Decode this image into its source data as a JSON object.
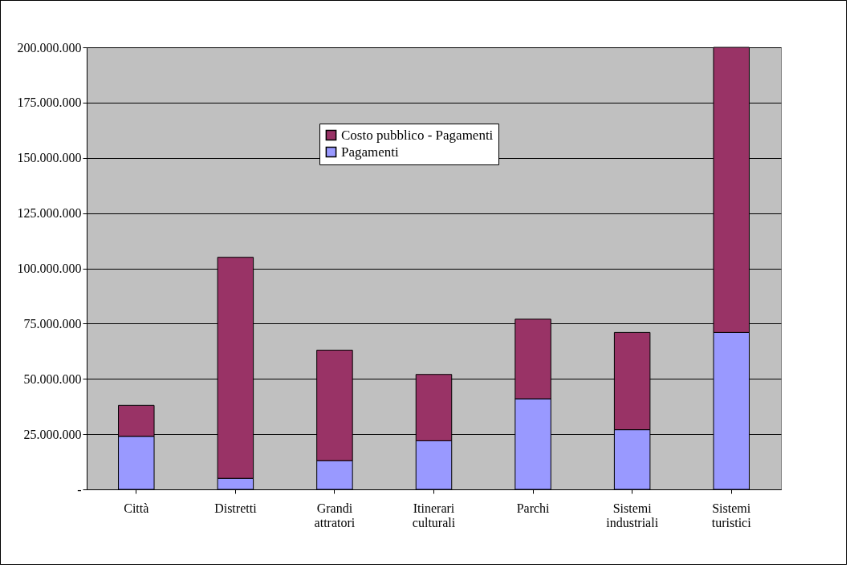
{
  "chart_data": {
    "type": "bar",
    "stacked": true,
    "categories": [
      "Città",
      "Distretti",
      "Grandi attratori",
      "Itinerari culturali",
      "Parchi",
      "Sistemi industriali",
      "Sistemi turistici"
    ],
    "series": [
      {
        "name": "Pagamenti",
        "color": "#9999ff",
        "values": [
          24000000,
          5000000,
          13000000,
          22000000,
          41000000,
          27000000,
          71000000
        ]
      },
      {
        "name": "Costo pubblico - Pagamenti",
        "color": "#993366",
        "values": [
          14000000,
          100000000,
          50000000,
          30000000,
          36000000,
          44000000,
          129000000
        ]
      }
    ],
    "ylim": [
      0,
      200000000
    ],
    "yticks": [
      {
        "value": 0,
        "label": "-"
      },
      {
        "value": 25000000,
        "label": "25.000.000"
      },
      {
        "value": 50000000,
        "label": "50.000.000"
      },
      {
        "value": 75000000,
        "label": "75.000.000"
      },
      {
        "value": 100000000,
        "label": "100.000.000"
      },
      {
        "value": 125000000,
        "label": "125.000.000"
      },
      {
        "value": 150000000,
        "label": "150.000.000"
      },
      {
        "value": 175000000,
        "label": "175.000.000"
      },
      {
        "value": 200000000,
        "label": "200.000.000"
      }
    ],
    "grid": "y",
    "legend": "top"
  }
}
